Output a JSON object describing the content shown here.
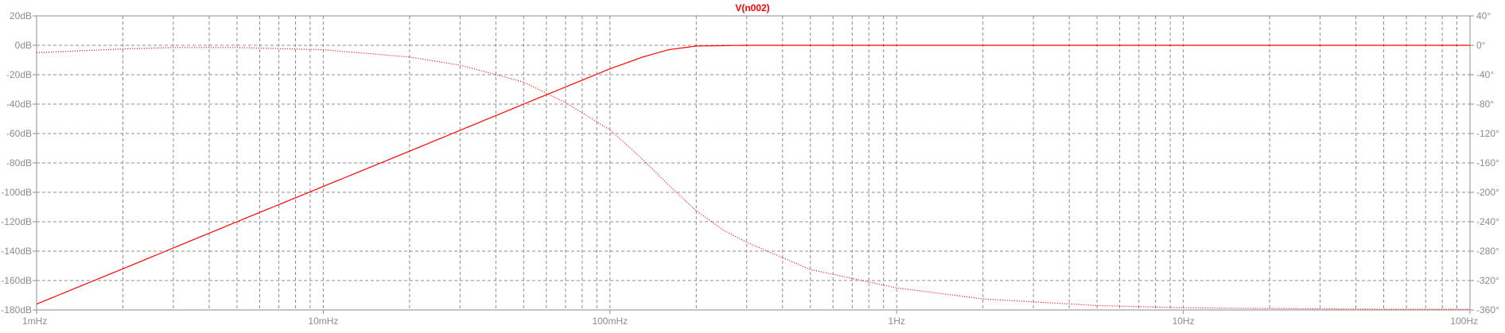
{
  "chart_data": {
    "type": "line",
    "title": "V(n002)",
    "x_scale": "log",
    "xlim": [
      0.001,
      100
    ],
    "x_ticks": [
      {
        "value": 0.001,
        "label": "1mHz"
      },
      {
        "value": 0.01,
        "label": "10mHz"
      },
      {
        "value": 0.1,
        "label": "100mHz"
      },
      {
        "value": 1,
        "label": "1Hz"
      },
      {
        "value": 10,
        "label": "10Hz"
      },
      {
        "value": 100,
        "label": "100Hz"
      }
    ],
    "y_left": {
      "unit": "dB",
      "lim": [
        -180,
        20
      ],
      "ticks": [
        "20dB",
        "0dB",
        "-20dB",
        "-40dB",
        "-60dB",
        "-80dB",
        "-100dB",
        "-120dB",
        "-140dB",
        "-160dB",
        "-180dB"
      ],
      "tick_values": [
        20,
        0,
        -20,
        -40,
        -60,
        -80,
        -100,
        -120,
        -140,
        -160,
        -180
      ]
    },
    "y_right": {
      "unit": "°",
      "lim": [
        -360,
        40
      ],
      "ticks": [
        "40°",
        "0°",
        "-40°",
        "-80°",
        "-120°",
        "-160°",
        "-200°",
        "-240°",
        "-280°",
        "-320°",
        "-360°"
      ],
      "tick_values": [
        40,
        0,
        -40,
        -80,
        -120,
        -160,
        -200,
        -240,
        -280,
        -320,
        -360
      ]
    },
    "grid": true,
    "colors": {
      "trace": "#ff0000",
      "title": "#ff0000",
      "grid": "#8c8c8c",
      "axis": "#8c8c8c",
      "label": "#8c8c8c",
      "background": "#ffffff"
    },
    "series": [
      {
        "quantity": "magnitude",
        "style": "solid",
        "axis": "left",
        "x": [
          0.001,
          0.002,
          0.005,
          0.01,
          0.02,
          0.05,
          0.1,
          0.13,
          0.16,
          0.2,
          0.3,
          0.5,
          1,
          10,
          100
        ],
        "y": [
          -176,
          -152,
          -120,
          -96,
          -72,
          -40,
          -16,
          -8,
          -3,
          -0.5,
          0,
          0,
          0,
          0,
          0
        ]
      },
      {
        "quantity": "phase",
        "style": "dotted",
        "axis": "right",
        "x": [
          0.001,
          0.002,
          0.003,
          0.005,
          0.01,
          0.02,
          0.03,
          0.05,
          0.07,
          0.1,
          0.13,
          0.16,
          0.2,
          0.25,
          0.3,
          0.5,
          1,
          2,
          5,
          10,
          20,
          50,
          100
        ],
        "y": [
          -10,
          -5,
          -3,
          -3,
          -6,
          -16,
          -27,
          -50,
          -78,
          -115,
          -155,
          -190,
          -225,
          -252,
          -268,
          -305,
          -330,
          -345,
          -354,
          -357,
          -358,
          -359,
          -359
        ]
      }
    ]
  }
}
